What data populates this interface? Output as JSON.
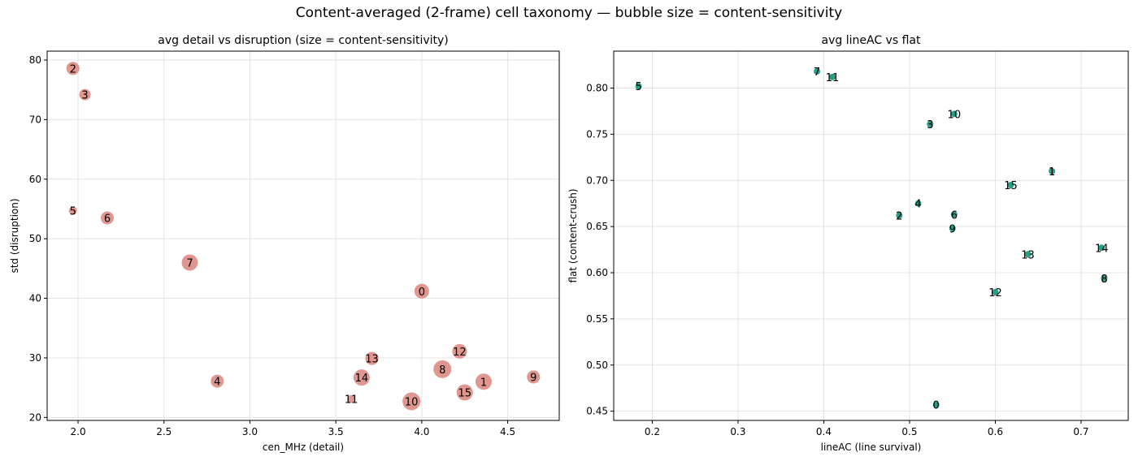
{
  "suptitle": "Content-averaged (2-frame) cell taxonomy — bubble size = content-sensitivity",
  "chart_data": [
    {
      "type": "scatter",
      "title": "avg detail vs disruption  (size = content-sensitivity)",
      "xlabel": "cen_MHz (detail)",
      "ylabel": "std (disruption)",
      "xlim": [
        1.82,
        4.8
      ],
      "ylim": [
        19.5,
        81.5
      ],
      "xticks": [
        2.0,
        2.5,
        3.0,
        3.5,
        4.0,
        4.5
      ],
      "xtick_labels": [
        "2.0",
        "2.5",
        "3.0",
        "3.5",
        "4.0",
        "4.5"
      ],
      "yticks": [
        20,
        30,
        40,
        50,
        60,
        70,
        80
      ],
      "ytick_labels": [
        "20",
        "30",
        "40",
        "50",
        "60",
        "70",
        "80"
      ],
      "grid": true,
      "marker_color": "#d9857c",
      "points": [
        {
          "label": "0",
          "x": 4.0,
          "y": 41.2,
          "size": 9
        },
        {
          "label": "1",
          "x": 4.36,
          "y": 26.0,
          "size": 10
        },
        {
          "label": "2",
          "x": 1.97,
          "y": 78.6,
          "size": 8
        },
        {
          "label": "3",
          "x": 2.04,
          "y": 74.2,
          "size": 7
        },
        {
          "label": "4",
          "x": 2.81,
          "y": 26.1,
          "size": 8
        },
        {
          "label": "5",
          "x": 1.97,
          "y": 54.7,
          "size": 5
        },
        {
          "label": "6",
          "x": 2.17,
          "y": 53.5,
          "size": 8
        },
        {
          "label": "7",
          "x": 2.65,
          "y": 46.0,
          "size": 10
        },
        {
          "label": "8",
          "x": 4.12,
          "y": 28.1,
          "size": 11
        },
        {
          "label": "9",
          "x": 4.65,
          "y": 26.8,
          "size": 8
        },
        {
          "label": "10",
          "x": 3.94,
          "y": 22.7,
          "size": 11
        },
        {
          "label": "11",
          "x": 3.59,
          "y": 23.1,
          "size": 5
        },
        {
          "label": "12",
          "x": 4.22,
          "y": 31.1,
          "size": 9
        },
        {
          "label": "13",
          "x": 3.71,
          "y": 29.9,
          "size": 8
        },
        {
          "label": "14",
          "x": 3.65,
          "y": 26.7,
          "size": 10
        },
        {
          "label": "15",
          "x": 4.25,
          "y": 24.2,
          "size": 10
        }
      ]
    },
    {
      "type": "scatter",
      "title": "avg lineAC vs flat",
      "xlabel": "lineAC (line survival)",
      "ylabel": "flat (content-crush)",
      "xlim": [
        0.155,
        0.755
      ],
      "ylim": [
        0.44,
        0.84
      ],
      "xticks": [
        0.2,
        0.3,
        0.4,
        0.5,
        0.6,
        0.7
      ],
      "xtick_labels": [
        "0.2",
        "0.3",
        "0.4",
        "0.5",
        "0.6",
        "0.7"
      ],
      "yticks": [
        0.45,
        0.5,
        0.55,
        0.6,
        0.65,
        0.7,
        0.75,
        0.8
      ],
      "ytick_labels": [
        "0.45",
        "0.50",
        "0.55",
        "0.60",
        "0.65",
        "0.70",
        "0.75",
        "0.80"
      ],
      "grid": true,
      "marker_color": "#1a9a80",
      "points": [
        {
          "label": "0",
          "x": 0.531,
          "y": 0.457
        },
        {
          "label": "1",
          "x": 0.666,
          "y": 0.71
        },
        {
          "label": "2",
          "x": 0.488,
          "y": 0.662
        },
        {
          "label": "3",
          "x": 0.524,
          "y": 0.761
        },
        {
          "label": "4",
          "x": 0.51,
          "y": 0.675
        },
        {
          "label": "5",
          "x": 0.184,
          "y": 0.802
        },
        {
          "label": "6",
          "x": 0.552,
          "y": 0.663
        },
        {
          "label": "7",
          "x": 0.392,
          "y": 0.818
        },
        {
          "label": "8",
          "x": 0.727,
          "y": 0.594
        },
        {
          "label": "9",
          "x": 0.55,
          "y": 0.648
        },
        {
          "label": "10",
          "x": 0.552,
          "y": 0.772
        },
        {
          "label": "11",
          "x": 0.41,
          "y": 0.812
        },
        {
          "label": "12",
          "x": 0.6,
          "y": 0.579
        },
        {
          "label": "13",
          "x": 0.638,
          "y": 0.62
        },
        {
          "label": "14",
          "x": 0.724,
          "y": 0.627
        },
        {
          "label": "15",
          "x": 0.618,
          "y": 0.695
        }
      ]
    }
  ]
}
